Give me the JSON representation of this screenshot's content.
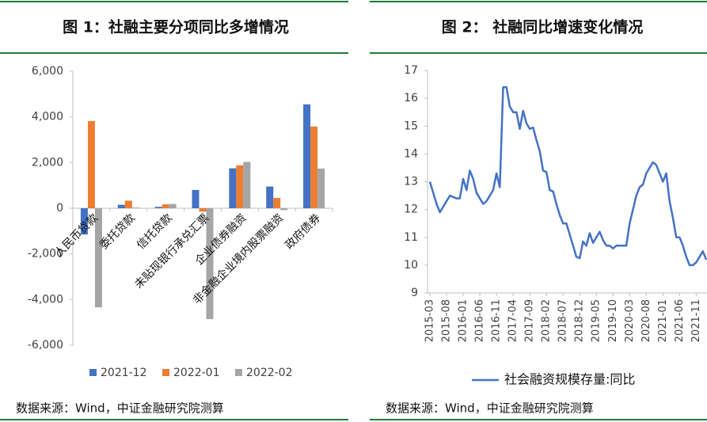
{
  "chart_data": [
    {
      "type": "bar",
      "title": "图 1：社融主要分项同比多增情况",
      "source": "数据来源：Wind，中证金融研究院测算",
      "categories": [
        "人民币贷款",
        "委托贷款",
        "信托贷款",
        "未贴现银行承兑汇票",
        "企业债券融资",
        "非金融企业境内股票融资",
        "政府债券"
      ],
      "series": [
        {
          "name": "2021-12",
          "color": "#4472c4",
          "values": [
            -1150,
            150,
            60,
            800,
            1750,
            950,
            4550
          ]
        },
        {
          "name": "2022-01",
          "color": "#ed7d31",
          "values": [
            3820,
            330,
            170,
            -150,
            1880,
            450,
            3580
          ]
        },
        {
          "name": "2022-02",
          "color": "#a5a5a5",
          "values": [
            -4340,
            30,
            190,
            -4860,
            2030,
            -80,
            1740
          ]
        }
      ],
      "ylim": [
        -6000,
        6000
      ],
      "yticks": [
        {
          "value": -6000,
          "label": "-6,000"
        },
        {
          "value": -4000,
          "label": "-4,000"
        },
        {
          "value": -2000,
          "label": "-2,000"
        },
        0,
        {
          "value": 2000,
          "label": "2,000"
        },
        {
          "value": 4000,
          "label": "4,000"
        },
        {
          "value": 6000,
          "label": "6,000"
        }
      ]
    },
    {
      "type": "line",
      "title": "图 2：  社融同比增速变化情况",
      "source": "数据来源：Wind，中证金融研究院测算",
      "x": [
        "2015-03",
        "2015-04",
        "2015-05",
        "2015-06",
        "2015-07",
        "2015-08",
        "2015-09",
        "2015-10",
        "2015-11",
        "2015-12",
        "2016-01",
        "2016-02",
        "2016-03",
        "2016-04",
        "2016-05",
        "2016-06",
        "2016-07",
        "2016-08",
        "2016-09",
        "2016-10",
        "2016-11",
        "2016-12",
        "2017-01",
        "2017-02",
        "2017-03",
        "2017-04",
        "2017-05",
        "2017-06",
        "2017-07",
        "2017-08",
        "2017-09",
        "2017-10",
        "2017-11",
        "2017-12",
        "2018-01",
        "2018-02",
        "2018-03",
        "2018-04",
        "2018-05",
        "2018-06",
        "2018-07",
        "2018-08",
        "2018-09",
        "2018-10",
        "2018-11",
        "2018-12",
        "2019-01",
        "2019-02",
        "2019-03",
        "2019-04",
        "2019-05",
        "2019-06",
        "2019-07",
        "2019-08",
        "2019-09",
        "2019-10",
        "2019-11",
        "2019-12",
        "2020-01",
        "2020-02",
        "2020-03",
        "2020-04",
        "2020-05",
        "2020-06",
        "2020-07",
        "2020-08",
        "2020-09",
        "2020-10",
        "2020-11",
        "2020-12",
        "2021-01",
        "2021-02",
        "2021-03",
        "2021-04",
        "2021-05",
        "2021-06",
        "2021-07",
        "2021-08",
        "2021-09",
        "2021-10",
        "2021-11",
        "2021-12",
        "2022-01",
        "2022-02"
      ],
      "series": [
        {
          "name": "社会融资规模存量:同比",
          "color": "#4472c4",
          "values": [
            13.0,
            12.6,
            12.2,
            11.9,
            12.1,
            12.3,
            12.5,
            12.45,
            12.4,
            12.4,
            13.1,
            12.7,
            13.4,
            13.1,
            12.6,
            12.4,
            12.2,
            12.3,
            12.5,
            12.7,
            13.3,
            12.8,
            16.4,
            16.4,
            15.7,
            15.5,
            15.5,
            14.9,
            15.55,
            15.1,
            14.9,
            14.95,
            14.5,
            14.1,
            13.4,
            13.35,
            12.7,
            12.65,
            12.2,
            11.8,
            11.5,
            11.5,
            11.1,
            10.7,
            10.3,
            10.25,
            10.85,
            10.7,
            11.15,
            10.8,
            11.0,
            11.2,
            10.9,
            10.7,
            10.7,
            10.6,
            10.7,
            10.7,
            10.7,
            10.7,
            11.5,
            12.0,
            12.5,
            12.8,
            12.9,
            13.3,
            13.5,
            13.7,
            13.6,
            13.3,
            13.0,
            13.3,
            12.3,
            11.7,
            11.0,
            11.0,
            10.7,
            10.3,
            10.0,
            10.0,
            10.1,
            10.3,
            10.5,
            10.2
          ]
        }
      ],
      "xticks": [
        "2015-03",
        "2015-08",
        "2016-01",
        "2016-06",
        "2016-11",
        "2017-04",
        "2017-09",
        "2018-02",
        "2018-07",
        "2018-12",
        "2019-05",
        "2019-10",
        "2020-03",
        "2020-08",
        "2021-01",
        "2021-06",
        "2021-11"
      ],
      "ylim": [
        9,
        17
      ],
      "yticks": [
        9,
        10,
        11,
        12,
        13,
        14,
        15,
        16,
        17
      ]
    }
  ]
}
